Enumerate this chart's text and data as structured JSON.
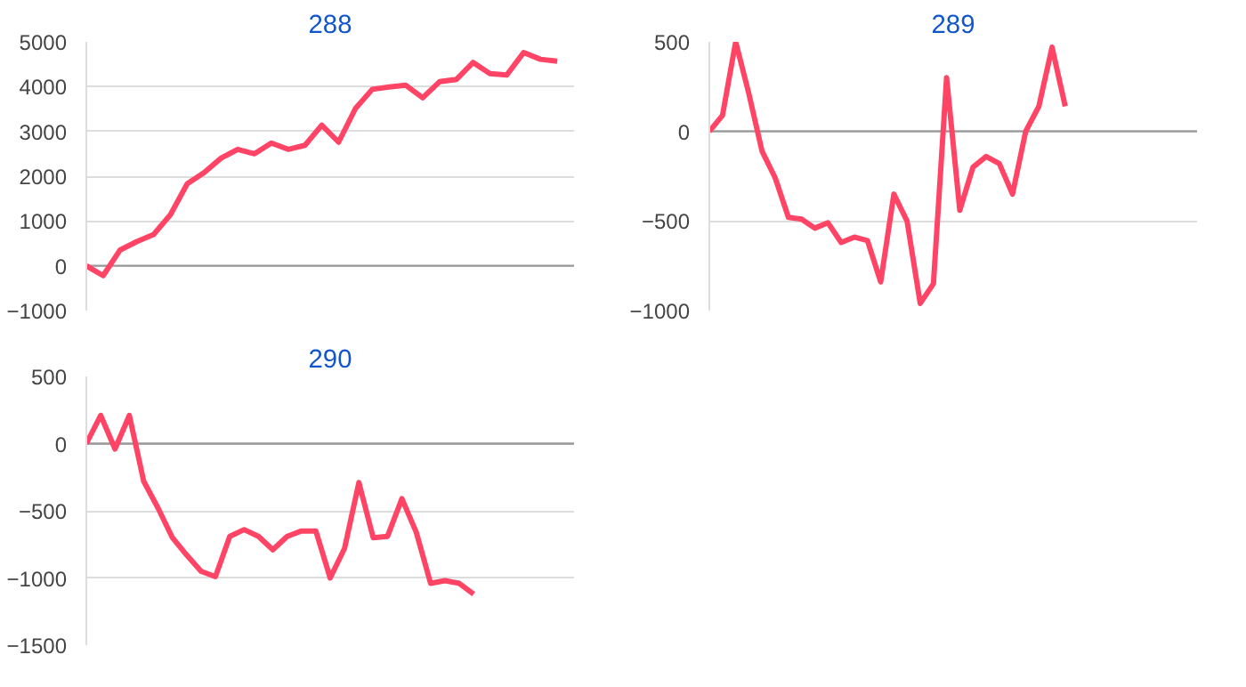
{
  "chart_data": [
    {
      "type": "line",
      "title": "288",
      "categories": [
        null,
        null,
        null,
        null,
        null,
        null,
        null,
        null,
        null,
        null,
        null,
        null,
        null,
        null,
        null,
        null,
        null,
        null,
        null,
        null,
        null,
        null,
        null,
        null,
        null,
        null,
        null,
        null,
        null,
        null
      ],
      "series": [
        {
          "color": "#ff4466",
          "values": [
            0,
            -220,
            350,
            540,
            700,
            1140,
            1830,
            2080,
            2400,
            2600,
            2500,
            2740,
            2600,
            2690,
            3140,
            2760,
            3510,
            3940,
            3990,
            4030,
            3750,
            4110,
            4160,
            4540,
            4290,
            4260,
            4760,
            4610,
            4570,
            null
          ]
        }
      ],
      "ylim": [
        -1000,
        5000
      ],
      "yticks": [
        -1000,
        0,
        1000,
        2000,
        3000,
        4000,
        5000
      ],
      "grid": "y",
      "tick_labels": "y",
      "ref_lines": [
        {
          "axis": "y",
          "value": 0,
          "color": "#999999"
        }
      ]
    },
    {
      "type": "line",
      "title": "289",
      "categories": [
        null,
        null,
        null,
        null,
        null,
        null,
        null,
        null,
        null,
        null,
        null,
        null,
        null,
        null,
        null,
        null,
        null,
        null,
        null,
        null,
        null,
        null,
        null,
        null,
        null,
        null,
        null,
        null,
        null,
        null,
        null,
        null,
        null,
        null,
        null,
        null,
        null,
        null
      ],
      "series": [
        {
          "color": "#ff4466",
          "values": [
            0,
            90,
            500,
            210,
            -110,
            -260,
            -480,
            -490,
            -540,
            -510,
            -620,
            -590,
            -610,
            -840,
            -350,
            -500,
            -960,
            -850,
            300,
            -440,
            -200,
            -140,
            -180,
            -350,
            0,
            140,
            470,
            140,
            null,
            null,
            null,
            null,
            null,
            null,
            null,
            null,
            null,
            null
          ]
        }
      ],
      "ylim": [
        -1000,
        500
      ],
      "yticks": [
        -1000,
        -500,
        0,
        500
      ],
      "grid": "y",
      "tick_labels": "y",
      "ref_lines": [
        {
          "axis": "y",
          "value": 0,
          "color": "#999999"
        }
      ]
    },
    {
      "type": "line",
      "title": "290",
      "categories": [
        null,
        null,
        null,
        null,
        null,
        null,
        null,
        null,
        null,
        null,
        null,
        null,
        null,
        null,
        null,
        null,
        null,
        null,
        null,
        null,
        null,
        null,
        null,
        null,
        null,
        null,
        null,
        null,
        null,
        null,
        null,
        null,
        null,
        null,
        null
      ],
      "series": [
        {
          "color": "#ff4466",
          "values": [
            0,
            210,
            -40,
            210,
            -280,
            -480,
            -700,
            -830,
            -950,
            -990,
            -690,
            -640,
            -690,
            -790,
            -690,
            -650,
            -650,
            -1000,
            -780,
            -290,
            -700,
            -690,
            -410,
            -660,
            -1040,
            -1020,
            -1040,
            -1120,
            null,
            null,
            null,
            null,
            null,
            null,
            null
          ]
        }
      ],
      "ylim": [
        -1500,
        500
      ],
      "yticks": [
        -1500,
        -1000,
        -500,
        0,
        500
      ],
      "grid": "y",
      "tick_labels": "y",
      "ref_lines": [
        {
          "axis": "y",
          "value": 0,
          "color": "#999999"
        }
      ]
    }
  ]
}
